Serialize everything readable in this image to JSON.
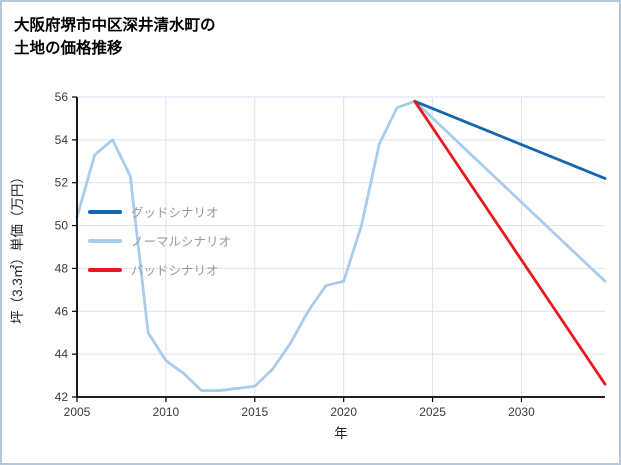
{
  "page": {
    "title_line1": "大阪府堺市中区深井清水町の",
    "title_line2": "土地の価格推移"
  },
  "legend": {
    "items": [
      {
        "label": "グッドシナリオ",
        "color": "#1467ad"
      },
      {
        "label": "ノーマルシナリオ",
        "color": "#a9cbec"
      },
      {
        "label": "バッドシナリオ",
        "color": "#e8191f"
      }
    ]
  },
  "chart_data": {
    "type": "line",
    "title": "大阪府堺市中区深井清水町の土地の価格推移",
    "xlabel": "年",
    "ylabel": "坪（3.3㎡）単価（万円）",
    "xlim": [
      2005,
      2034.7
    ],
    "ylim": [
      42,
      56
    ],
    "x_ticks": [
      2005,
      2010,
      2015,
      2020,
      2025,
      2030
    ],
    "y_ticks": [
      42,
      44,
      46,
      48,
      50,
      52,
      54,
      56
    ],
    "grid": true,
    "grid_color": "#d9e2ee",
    "axis_color": "#000000",
    "tick_label_color": "#3a3a3a",
    "axis_label_color": "#222222",
    "legend_position": "inside-left",
    "series": [
      {
        "name": "ノーマルシナリオ",
        "color": "#a9cbec",
        "x": [
          2005,
          2006,
          2007,
          2008,
          2009,
          2010,
          2011,
          2012,
          2013,
          2014,
          2015,
          2016,
          2017,
          2018,
          2019,
          2020,
          2021,
          2022,
          2023,
          2024,
          2034.7
        ],
        "values": [
          50.4,
          53.3,
          54.0,
          52.3,
          45.0,
          43.7,
          43.1,
          42.3,
          42.3,
          42.4,
          42.5,
          43.3,
          44.5,
          46.0,
          47.2,
          47.4,
          50.0,
          53.8,
          55.5,
          55.8,
          47.4
        ]
      },
      {
        "name": "グッドシナリオ",
        "color": "#1467ad",
        "x": [
          2024,
          2034.7
        ],
        "values": [
          55.8,
          52.2
        ]
      },
      {
        "name": "バッドシナリオ",
        "color": "#e8191f",
        "x": [
          2024,
          2034.7
        ],
        "values": [
          55.8,
          42.6
        ]
      }
    ]
  }
}
